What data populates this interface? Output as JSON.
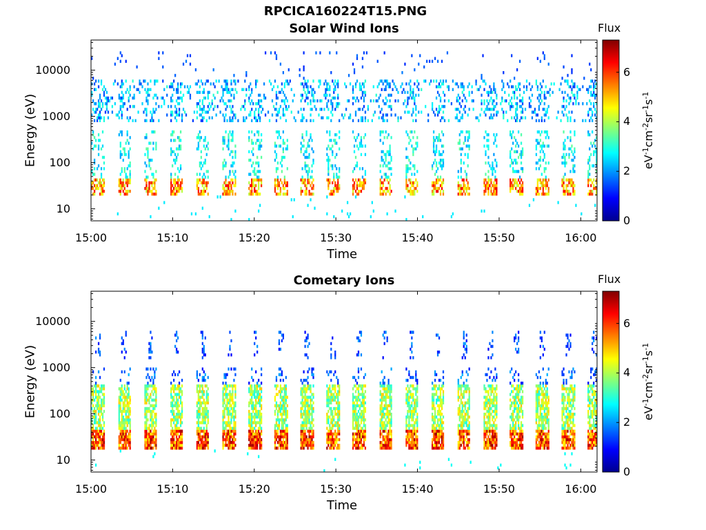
{
  "figure": {
    "title": "RPCICA160224T15.PNG"
  },
  "chart_data": [
    {
      "type": "heatmap",
      "title": "Solar Wind Ions",
      "xlabel": "Time",
      "ylabel": "Energy (eV)",
      "xlim": [
        "15:00",
        "16:02"
      ],
      "x_tick_labels": [
        "15:00",
        "15:10",
        "15:20",
        "15:30",
        "15:40",
        "15:50",
        "16:00"
      ],
      "y_scale": "log",
      "ylim": [
        5.5,
        45000
      ],
      "y_tick_labels": [
        "10",
        "100",
        "1000",
        "10000"
      ],
      "colorbar": {
        "label": "Flux",
        "unit_label": "eV-1cm-2sr-1s-1",
        "range": [
          0,
          7.3
        ],
        "tick_labels": [
          "0",
          "2",
          "4",
          "6"
        ],
        "colormap": "jet"
      },
      "sweep_period_min": 3.2,
      "dominant_bands": [
        {
          "energy_eV": "22-45",
          "flux": "4.5-6.5"
        },
        {
          "energy_eV": "90-400",
          "flux": "2-3.5"
        },
        {
          "energy_eV": "1000-5000",
          "flux": "1.5-3"
        }
      ]
    },
    {
      "type": "heatmap",
      "title": "Cometary Ions",
      "xlabel": "Time",
      "ylabel": "Energy (eV)",
      "xlim": [
        "15:00",
        "16:02"
      ],
      "x_tick_labels": [
        "15:00",
        "15:10",
        "15:20",
        "15:30",
        "15:40",
        "15:50",
        "16:00"
      ],
      "y_scale": "log",
      "ylim": [
        5.5,
        45000
      ],
      "y_tick_labels": [
        "10",
        "100",
        "1000",
        "10000"
      ],
      "colorbar": {
        "label": "Flux",
        "unit_label": "eV-1cm-2sr-1s-1",
        "range": [
          0,
          7.3
        ],
        "tick_labels": [
          "0",
          "2",
          "4",
          "6"
        ],
        "colormap": "jet"
      },
      "sweep_period_min": 3.2,
      "dominant_bands": [
        {
          "energy_eV": "20-45",
          "flux": "5.5-7"
        },
        {
          "energy_eV": "45-400",
          "flux": "3-5"
        },
        {
          "energy_eV": "1500-5000",
          "flux": "1-2"
        }
      ]
    }
  ]
}
